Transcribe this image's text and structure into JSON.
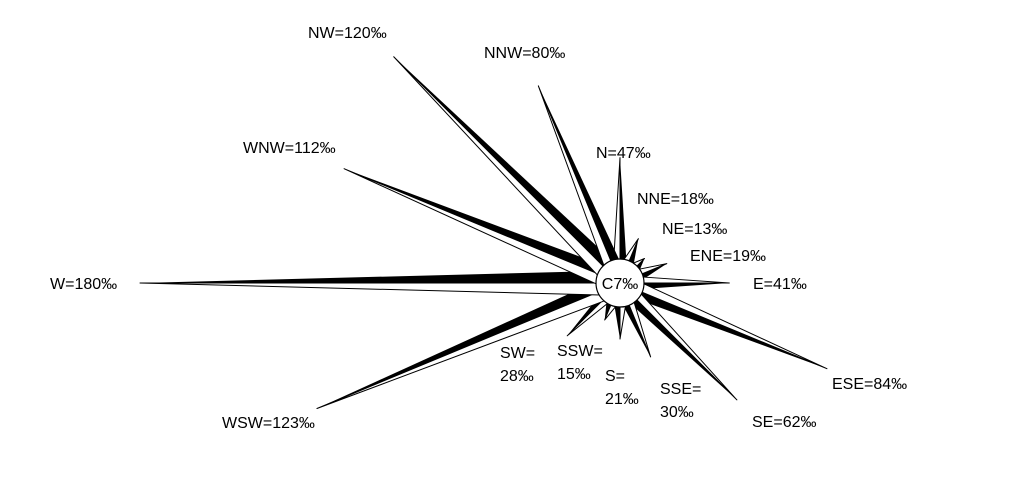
{
  "chart_data": {
    "type": "wind-rose",
    "unit": "‰",
    "center": {
      "label": "C7‰",
      "calm": 7
    },
    "directions": [
      {
        "dir": "N",
        "angle": 0,
        "value": 47,
        "label": [
          "N=47‰"
        ]
      },
      {
        "dir": "NNE",
        "angle": 22.5,
        "value": 18,
        "label": [
          "NNE=18‰"
        ]
      },
      {
        "dir": "NE",
        "angle": 45,
        "value": 13,
        "label": [
          "NE=13‰"
        ]
      },
      {
        "dir": "ENE",
        "angle": 67.5,
        "value": 19,
        "label": [
          "ENE=19‰"
        ]
      },
      {
        "dir": "E",
        "angle": 90,
        "value": 41,
        "label": [
          "E=41‰"
        ]
      },
      {
        "dir": "ESE",
        "angle": 112.5,
        "value": 84,
        "label": [
          "ESE=84‰"
        ]
      },
      {
        "dir": "SE",
        "angle": 135,
        "value": 62,
        "label": [
          "SE=62‰"
        ]
      },
      {
        "dir": "SSE",
        "angle": 157.5,
        "value": 30,
        "label": [
          "SSE=",
          "30‰"
        ]
      },
      {
        "dir": "S",
        "angle": 180,
        "value": 21,
        "label": [
          "S=",
          "21‰"
        ]
      },
      {
        "dir": "SSW",
        "angle": 202.5,
        "value": 15,
        "label": [
          "SSW=",
          "15‰"
        ]
      },
      {
        "dir": "SW",
        "angle": 225,
        "value": 28,
        "label": [
          "SW=",
          "28‰"
        ]
      },
      {
        "dir": "WSW",
        "angle": 247.5,
        "value": 123,
        "label": [
          "WSW=123‰"
        ]
      },
      {
        "dir": "W",
        "angle": 270,
        "value": 180,
        "label": [
          "W=180‰"
        ]
      },
      {
        "dir": "WNW",
        "angle": 292.5,
        "value": 112,
        "label": [
          "WNW=112‰"
        ]
      },
      {
        "dir": "NW",
        "angle": 315,
        "value": 120,
        "label": [
          "NW=120‰"
        ]
      },
      {
        "dir": "NNW",
        "angle": 337.5,
        "value": 80,
        "label": [
          "NNW=80‰"
        ]
      }
    ],
    "colors": {
      "spike": "#000000",
      "highlight": "#ffffff",
      "center_fill": "#ffffff"
    }
  }
}
